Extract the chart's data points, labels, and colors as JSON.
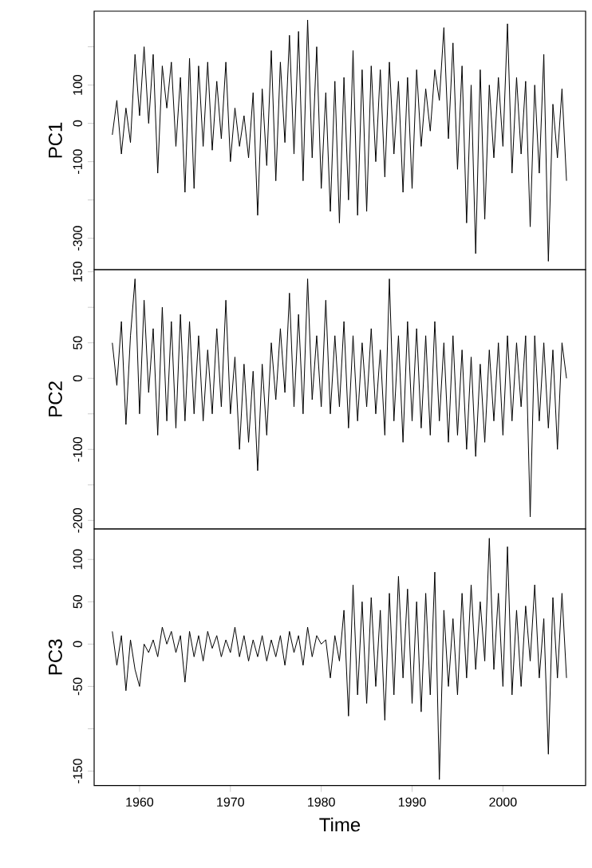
{
  "chart_data": [
    {
      "type": "line",
      "ylabel": "PC1",
      "xlim": [
        1955.0,
        2009.1
      ],
      "ylim": [
        -382,
        293
      ],
      "tick_labels": "y",
      "yticks": [
        {
          "value": 200,
          "label": null
        },
        100,
        0,
        -100,
        {
          "value": -200,
          "label": null
        },
        -300
      ],
      "x": [
        1957,
        1957.5,
        1958,
        1958.5,
        1959,
        1959.5,
        1960,
        1960.5,
        1961,
        1961.5,
        1962,
        1962.5,
        1963,
        1963.5,
        1964,
        1964.5,
        1965,
        1965.5,
        1966,
        1966.5,
        1967,
        1967.5,
        1968,
        1968.5,
        1969,
        1969.5,
        1970,
        1970.5,
        1971,
        1971.5,
        1972,
        1972.5,
        1973,
        1973.5,
        1974,
        1974.5,
        1975,
        1975.5,
        1976,
        1976.5,
        1977,
        1977.5,
        1978,
        1978.5,
        1979,
        1979.5,
        1980,
        1980.5,
        1981,
        1981.5,
        1982,
        1982.5,
        1983,
        1983.5,
        1984,
        1984.5,
        1985,
        1985.5,
        1986,
        1986.5,
        1987,
        1987.5,
        1988,
        1988.5,
        1989,
        1989.5,
        1990,
        1990.5,
        1991,
        1991.5,
        1992,
        1992.5,
        1993,
        1993.5,
        1994,
        1994.5,
        1995,
        1995.5,
        1996,
        1996.5,
        1997,
        1997.5,
        1998,
        1998.5,
        1999,
        1999.5,
        2000,
        2000.5,
        2001,
        2001.5,
        2002,
        2002.5,
        2003,
        2003.5,
        2004,
        2004.5,
        2005,
        2005.5,
        2006,
        2006.5,
        2007
      ],
      "series": [
        {
          "color": "#000000",
          "values": [
            -30,
            60,
            -80,
            40,
            -50,
            180,
            20,
            200,
            0,
            180,
            -130,
            150,
            40,
            160,
            -60,
            120,
            -180,
            170,
            -170,
            150,
            -60,
            160,
            -70,
            110,
            -40,
            160,
            -100,
            40,
            -60,
            20,
            -90,
            80,
            -240,
            90,
            -110,
            190,
            -150,
            160,
            -50,
            230,
            -80,
            240,
            -150,
            270,
            -90,
            200,
            -170,
            80,
            -230,
            110,
            -260,
            120,
            -200,
            190,
            -240,
            140,
            -230,
            150,
            -100,
            140,
            -140,
            160,
            -80,
            110,
            -180,
            120,
            -170,
            140,
            -60,
            90,
            -20,
            140,
            60,
            250,
            -40,
            210,
            -120,
            150,
            -260,
            100,
            -340,
            140,
            -250,
            100,
            -90,
            120,
            -60,
            260,
            -130,
            120,
            -80,
            110,
            -270,
            100,
            -130,
            180,
            -360,
            50,
            -90,
            90,
            -150
          ]
        }
      ]
    },
    {
      "type": "line",
      "ylabel": "PC2",
      "xlim": [
        1955.0,
        2009.1
      ],
      "ylim": [
        -212,
        153
      ],
      "tick_labels": "y",
      "yticks": [
        150,
        {
          "value": 100,
          "label": null
        },
        50,
        0,
        {
          "value": -50,
          "label": null
        },
        -100,
        {
          "value": -150,
          "label": null
        },
        -200
      ],
      "x": [
        1957,
        1957.5,
        1958,
        1958.5,
        1959,
        1959.5,
        1960,
        1960.5,
        1961,
        1961.5,
        1962,
        1962.5,
        1963,
        1963.5,
        1964,
        1964.5,
        1965,
        1965.5,
        1966,
        1966.5,
        1967,
        1967.5,
        1968,
        1968.5,
        1969,
        1969.5,
        1970,
        1970.5,
        1971,
        1971.5,
        1972,
        1972.5,
        1973,
        1973.5,
        1974,
        1974.5,
        1975,
        1975.5,
        1976,
        1976.5,
        1977,
        1977.5,
        1978,
        1978.5,
        1979,
        1979.5,
        1980,
        1980.5,
        1981,
        1981.5,
        1982,
        1982.5,
        1983,
        1983.5,
        1984,
        1984.5,
        1985,
        1985.5,
        1986,
        1986.5,
        1987,
        1987.5,
        1988,
        1988.5,
        1989,
        1989.5,
        1990,
        1990.5,
        1991,
        1991.5,
        1992,
        1992.5,
        1993,
        1993.5,
        1994,
        1994.5,
        1995,
        1995.5,
        1996,
        1996.5,
        1997,
        1997.5,
        1998,
        1998.5,
        1999,
        1999.5,
        2000,
        2000.5,
        2001,
        2001.5,
        2002,
        2002.5,
        2003,
        2003.5,
        2004,
        2004.5,
        2005,
        2005.5,
        2006,
        2006.5,
        2007
      ],
      "series": [
        {
          "color": "#000000",
          "values": [
            50,
            -10,
            80,
            -65,
            60,
            140,
            -50,
            110,
            -20,
            70,
            -80,
            100,
            -60,
            80,
            -70,
            90,
            -60,
            80,
            -50,
            60,
            -60,
            40,
            -50,
            70,
            -40,
            110,
            -50,
            30,
            -100,
            20,
            -90,
            10,
            -130,
            20,
            -80,
            50,
            -30,
            70,
            -20,
            120,
            -40,
            90,
            -50,
            140,
            -30,
            60,
            -40,
            110,
            -50,
            60,
            -40,
            80,
            -70,
            60,
            -60,
            50,
            -40,
            70,
            -50,
            40,
            -80,
            140,
            -60,
            60,
            -90,
            80,
            -60,
            70,
            -70,
            60,
            -80,
            80,
            -60,
            50,
            -90,
            60,
            -80,
            40,
            -100,
            30,
            -110,
            20,
            -90,
            40,
            -60,
            50,
            -80,
            60,
            -60,
            50,
            -40,
            60,
            -195,
            60,
            -60,
            50,
            -70,
            40,
            -100,
            50,
            0
          ]
        }
      ]
    },
    {
      "type": "line",
      "ylabel": "PC3",
      "xlabel": "Time",
      "xlim": [
        1955.0,
        2009.1
      ],
      "ylim": [
        -167,
        136
      ],
      "xticks": [
        1960,
        1970,
        1980,
        1990,
        2000
      ],
      "yticks": [
        100,
        50,
        0,
        -50,
        {
          "value": -100,
          "label": null
        },
        -150
      ],
      "x": [
        1957,
        1957.5,
        1958,
        1958.5,
        1959,
        1959.5,
        1960,
        1960.5,
        1961,
        1961.5,
        1962,
        1962.5,
        1963,
        1963.5,
        1964,
        1964.5,
        1965,
        1965.5,
        1966,
        1966.5,
        1967,
        1967.5,
        1968,
        1968.5,
        1969,
        1969.5,
        1970,
        1970.5,
        1971,
        1971.5,
        1972,
        1972.5,
        1973,
        1973.5,
        1974,
        1974.5,
        1975,
        1975.5,
        1976,
        1976.5,
        1977,
        1977.5,
        1978,
        1978.5,
        1979,
        1979.5,
        1980,
        1980.5,
        1981,
        1981.5,
        1982,
        1982.5,
        1983,
        1983.5,
        1984,
        1984.5,
        1985,
        1985.5,
        1986,
        1986.5,
        1987,
        1987.5,
        1988,
        1988.5,
        1989,
        1989.5,
        1990,
        1990.5,
        1991,
        1991.5,
        1992,
        1992.5,
        1993,
        1993.5,
        1994,
        1994.5,
        1995,
        1995.5,
        1996,
        1996.5,
        1997,
        1997.5,
        1998,
        1998.5,
        1999,
        1999.5,
        2000,
        2000.5,
        2001,
        2001.5,
        2002,
        2002.5,
        2003,
        2003.5,
        2004,
        2004.5,
        2005,
        2005.5,
        2006,
        2006.5,
        2007
      ],
      "series": [
        {
          "color": "#000000",
          "values": [
            15,
            -25,
            10,
            -55,
            5,
            -30,
            -50,
            0,
            -10,
            5,
            -15,
            20,
            0,
            15,
            -10,
            10,
            -45,
            15,
            -15,
            10,
            -20,
            15,
            -5,
            10,
            -15,
            5,
            -10,
            20,
            -15,
            10,
            -20,
            5,
            -15,
            10,
            -20,
            5,
            -15,
            10,
            -25,
            15,
            -10,
            10,
            -25,
            20,
            -15,
            10,
            0,
            5,
            -40,
            10,
            -20,
            40,
            -85,
            70,
            -60,
            50,
            -70,
            55,
            -50,
            40,
            -90,
            60,
            -60,
            80,
            -40,
            65,
            -70,
            50,
            -80,
            60,
            -60,
            85,
            -160,
            40,
            -50,
            30,
            -60,
            60,
            -40,
            70,
            -30,
            50,
            -20,
            125,
            -30,
            60,
            -50,
            115,
            -60,
            40,
            -50,
            45,
            -20,
            70,
            -40,
            30,
            -130,
            55,
            -40,
            60,
            -40
          ]
        }
      ]
    }
  ]
}
